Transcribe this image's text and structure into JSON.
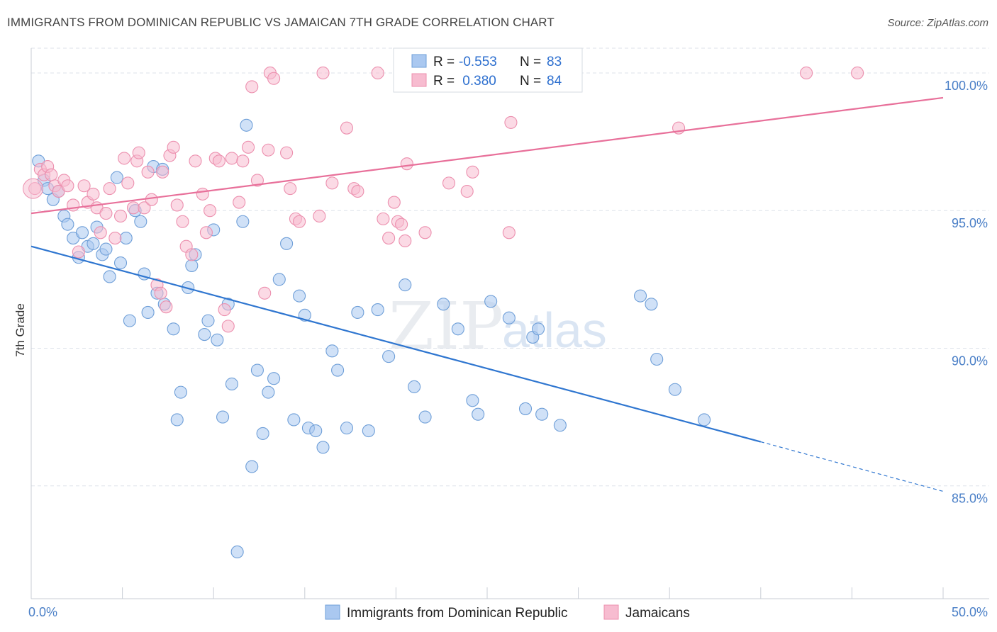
{
  "title": "IMMIGRANTS FROM DOMINICAN REPUBLIC VS JAMAICAN 7TH GRADE CORRELATION CHART",
  "source": "Source: ZipAtlas.com",
  "watermark": {
    "zip": "ZIP",
    "atlas": "atlas"
  },
  "colors": {
    "blue_fill": "#aac8f0",
    "blue_stroke": "#6f9fd8",
    "blue_line": "#2f76d0",
    "pink_fill": "#f7bcd0",
    "pink_stroke": "#ec8fae",
    "pink_line": "#e8709a",
    "tick_text": "#4a7fc7",
    "grid": "#dde2ea"
  },
  "legend": {
    "rows": [
      {
        "r_label": "R = ",
        "r_value": "-0.553",
        "n_label": "N = ",
        "n_value": "83"
      },
      {
        "r_label": "R = ",
        "r_value": " 0.380",
        "n_label": "N = ",
        "n_value": "84"
      }
    ]
  },
  "bottom_legend": [
    "Immigrants from Dominican Republic",
    "Jamaicans"
  ],
  "chart_data": {
    "type": "scatter",
    "title": "IMMIGRANTS FROM DOMINICAN REPUBLIC VS JAMAICAN 7TH GRADE CORRELATION CHART",
    "xlabel": "",
    "ylabel": "7th Grade",
    "xlim": [
      0,
      50
    ],
    "ylim": [
      80.9,
      100.9
    ],
    "x_ticks": [
      0,
      5,
      10,
      15,
      20,
      25,
      30,
      35,
      40,
      45,
      50
    ],
    "x_tick_labels": {
      "0": "0.0%",
      "50": "50.0%"
    },
    "y_ticks": [
      85,
      90,
      95,
      100
    ],
    "y_tick_labels": [
      "85.0%",
      "90.0%",
      "95.0%",
      "100.0%"
    ],
    "grid": true,
    "legend_position": "top-center",
    "series": [
      {
        "name": "Immigrants from Dominican Republic",
        "color": "#aac8f0",
        "trend": {
          "x": [
            0,
            40
          ],
          "y": [
            93.7,
            86.6
          ],
          "dashed_to_x": 50,
          "dashed_to_y": 84.8
        },
        "points": [
          [
            0.4,
            96.8
          ],
          [
            0.7,
            96.1
          ],
          [
            0.9,
            95.8
          ],
          [
            1.2,
            95.4
          ],
          [
            1.5,
            95.7
          ],
          [
            1.8,
            94.8
          ],
          [
            2.0,
            94.5
          ],
          [
            2.3,
            94.0
          ],
          [
            2.6,
            93.3
          ],
          [
            2.8,
            94.2
          ],
          [
            3.1,
            93.7
          ],
          [
            3.4,
            93.8
          ],
          [
            3.6,
            94.4
          ],
          [
            3.9,
            93.4
          ],
          [
            4.1,
            93.6
          ],
          [
            4.3,
            92.6
          ],
          [
            4.7,
            96.2
          ],
          [
            4.9,
            93.1
          ],
          [
            5.2,
            94.0
          ],
          [
            5.4,
            91.0
          ],
          [
            5.7,
            95.0
          ],
          [
            6.0,
            94.6
          ],
          [
            6.2,
            92.7
          ],
          [
            6.4,
            91.3
          ],
          [
            6.7,
            96.6
          ],
          [
            6.9,
            92.0
          ],
          [
            7.2,
            96.5
          ],
          [
            7.3,
            91.6
          ],
          [
            7.8,
            90.7
          ],
          [
            8.2,
            88.4
          ],
          [
            8.6,
            92.2
          ],
          [
            8.8,
            93.0
          ],
          [
            9.0,
            93.4
          ],
          [
            9.5,
            90.5
          ],
          [
            9.7,
            91.0
          ],
          [
            10.0,
            94.3
          ],
          [
            10.2,
            90.3
          ],
          [
            10.8,
            91.6
          ],
          [
            11.0,
            88.7
          ],
          [
            11.3,
            82.6
          ],
          [
            11.6,
            94.6
          ],
          [
            11.8,
            98.1
          ],
          [
            12.1,
            85.7
          ],
          [
            12.4,
            89.2
          ],
          [
            12.7,
            86.9
          ],
          [
            13.0,
            88.4
          ],
          [
            13.3,
            88.9
          ],
          [
            13.6,
            92.5
          ],
          [
            14.0,
            93.8
          ],
          [
            14.4,
            87.4
          ],
          [
            14.7,
            91.9
          ],
          [
            15.0,
            91.2
          ],
          [
            15.2,
            87.1
          ],
          [
            16.0,
            86.4
          ],
          [
            16.5,
            89.9
          ],
          [
            16.8,
            89.2
          ],
          [
            17.3,
            87.1
          ],
          [
            17.9,
            91.3
          ],
          [
            18.5,
            87.0
          ],
          [
            19.0,
            91.4
          ],
          [
            19.6,
            89.7
          ],
          [
            20.5,
            92.3
          ],
          [
            21.0,
            88.6
          ],
          [
            21.6,
            87.5
          ],
          [
            22.6,
            91.6
          ],
          [
            23.4,
            90.7
          ],
          [
            24.2,
            88.1
          ],
          [
            24.5,
            87.6
          ],
          [
            25.2,
            91.7
          ],
          [
            26.2,
            91.1
          ],
          [
            27.1,
            87.8
          ],
          [
            27.5,
            90.4
          ],
          [
            27.8,
            90.7
          ],
          [
            28.0,
            87.6
          ],
          [
            29.0,
            87.2
          ],
          [
            33.4,
            91.9
          ],
          [
            34.0,
            91.6
          ],
          [
            34.3,
            89.6
          ],
          [
            35.3,
            88.5
          ],
          [
            36.9,
            87.4
          ],
          [
            8.0,
            87.4
          ],
          [
            10.5,
            87.5
          ],
          [
            15.6,
            87.0
          ]
        ]
      },
      {
        "name": "Jamaicans",
        "color": "#f7bcd0",
        "trend": {
          "x": [
            0,
            50
          ],
          "y": [
            94.9,
            99.1
          ]
        },
        "points": [
          [
            0.2,
            95.8
          ],
          [
            0.5,
            96.5
          ],
          [
            0.7,
            96.3
          ],
          [
            0.9,
            96.6
          ],
          [
            1.1,
            96.3
          ],
          [
            1.3,
            95.9
          ],
          [
            1.5,
            95.7
          ],
          [
            1.8,
            96.1
          ],
          [
            2.0,
            95.9
          ],
          [
            2.3,
            95.2
          ],
          [
            2.6,
            93.5
          ],
          [
            2.9,
            95.9
          ],
          [
            3.1,
            95.3
          ],
          [
            3.4,
            95.6
          ],
          [
            3.6,
            95.1
          ],
          [
            3.8,
            94.2
          ],
          [
            4.1,
            94.9
          ],
          [
            4.3,
            95.8
          ],
          [
            4.6,
            94.0
          ],
          [
            4.9,
            94.8
          ],
          [
            5.1,
            96.9
          ],
          [
            5.3,
            96.0
          ],
          [
            5.6,
            95.1
          ],
          [
            5.8,
            96.8
          ],
          [
            5.9,
            97.1
          ],
          [
            6.2,
            95.1
          ],
          [
            6.4,
            96.4
          ],
          [
            6.6,
            95.4
          ],
          [
            6.9,
            92.3
          ],
          [
            7.1,
            92.0
          ],
          [
            7.2,
            96.4
          ],
          [
            7.4,
            91.5
          ],
          [
            7.6,
            97.0
          ],
          [
            7.8,
            97.3
          ],
          [
            8.0,
            95.2
          ],
          [
            8.3,
            94.6
          ],
          [
            8.5,
            93.7
          ],
          [
            8.8,
            93.4
          ],
          [
            9.0,
            96.8
          ],
          [
            9.4,
            95.6
          ],
          [
            9.6,
            94.2
          ],
          [
            9.8,
            95.0
          ],
          [
            10.1,
            96.9
          ],
          [
            10.3,
            96.8
          ],
          [
            10.6,
            91.4
          ],
          [
            10.8,
            90.8
          ],
          [
            11.0,
            96.9
          ],
          [
            11.4,
            95.3
          ],
          [
            11.6,
            96.8
          ],
          [
            11.9,
            97.3
          ],
          [
            12.4,
            96.1
          ],
          [
            12.8,
            92.0
          ],
          [
            13.1,
            100.0
          ],
          [
            13.3,
            99.8
          ],
          [
            14.0,
            97.1
          ],
          [
            14.2,
            95.8
          ],
          [
            14.5,
            94.7
          ],
          [
            14.7,
            94.6
          ],
          [
            15.8,
            94.8
          ],
          [
            16.0,
            100.0
          ],
          [
            16.5,
            96.0
          ],
          [
            17.3,
            98.0
          ],
          [
            17.7,
            95.8
          ],
          [
            17.9,
            95.7
          ],
          [
            19.0,
            100.0
          ],
          [
            19.3,
            94.7
          ],
          [
            19.6,
            94.0
          ],
          [
            19.9,
            95.3
          ],
          [
            20.1,
            94.6
          ],
          [
            20.3,
            94.5
          ],
          [
            20.6,
            96.7
          ],
          [
            21.6,
            94.2
          ],
          [
            22.9,
            96.0
          ],
          [
            23.9,
            95.7
          ],
          [
            24.2,
            96.4
          ],
          [
            26.2,
            94.2
          ],
          [
            26.3,
            98.2
          ],
          [
            26.6,
            100.0
          ],
          [
            35.5,
            98.0
          ],
          [
            42.5,
            100.0
          ],
          [
            45.3,
            100.0
          ],
          [
            12.1,
            99.5
          ],
          [
            13.0,
            97.2
          ],
          [
            20.5,
            93.9
          ]
        ]
      }
    ]
  }
}
